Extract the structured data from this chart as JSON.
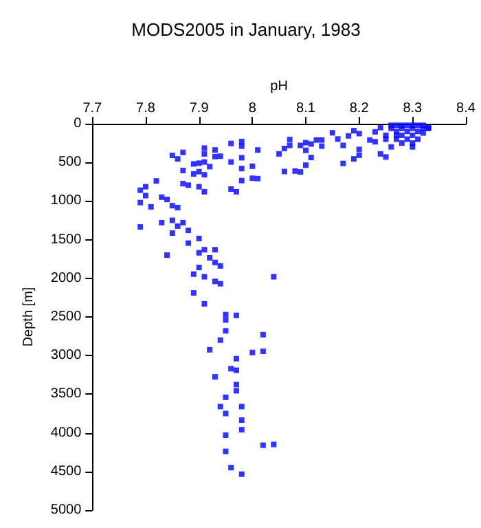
{
  "chart_data": {
    "type": "scatter",
    "title": "MODS2005 in January, 1983",
    "xlabel": "pH",
    "ylabel": "Depth [m]",
    "series": [
      {
        "color": "#0000ff",
        "x": [
          8.26,
          8.27,
          8.28,
          8.29,
          8.3,
          8.31,
          8.32,
          8.33,
          8.27,
          8.28,
          8.29,
          8.3,
          8.3,
          8.3,
          8.31,
          8.32,
          8.33,
          8.27,
          8.28,
          8.26,
          8.25,
          8.25,
          8.24,
          8.29,
          8.31,
          8.26,
          8.28,
          8.3,
          8.32,
          8.27,
          8.15,
          8.19,
          8.2,
          8.23,
          8.17,
          8.19,
          8.17,
          8.2,
          8.24,
          8.25,
          8.23,
          8.22,
          8.13,
          8.12,
          8.11,
          8.1,
          8.09,
          8.07,
          8.07,
          8.06,
          8.1,
          8.11,
          8.1,
          8.09,
          8.08,
          8.06,
          8.13,
          8.16,
          8.18,
          8.2,
          7.91,
          7.93,
          7.96,
          7.98,
          7.98,
          8.01,
          8.05,
          7.85,
          7.86,
          7.87,
          7.91,
          7.93,
          7.94,
          7.98,
          7.96,
          7.89,
          7.9,
          7.91,
          7.92,
          7.9,
          7.89,
          7.91,
          7.87,
          7.98,
          8.0,
          8.0,
          8.01,
          7.98,
          7.87,
          7.88,
          7.9,
          7.91,
          7.96,
          7.97,
          7.82,
          7.8,
          7.79,
          7.8,
          7.79,
          7.81,
          7.83,
          7.84,
          7.85,
          7.86,
          7.79,
          7.83,
          7.85,
          7.86,
          7.87,
          7.88,
          7.85,
          7.88,
          7.9,
          7.9,
          7.91,
          7.93,
          7.92,
          7.93,
          7.94,
          7.84,
          7.9,
          7.89,
          7.91,
          7.93,
          7.94,
          8.04,
          7.89,
          7.91,
          7.95,
          7.97,
          7.95,
          7.95,
          8.02,
          7.94,
          7.92,
          7.97,
          8.0,
          8.02,
          7.96,
          7.97,
          7.93,
          7.97,
          7.97,
          7.95,
          7.94,
          7.98,
          7.95,
          7.98,
          7.98,
          7.95,
          8.02,
          8.04,
          7.95,
          7.96,
          7.98
        ],
        "values": [
          20,
          20,
          20,
          20,
          20,
          20,
          20,
          60,
          100,
          150,
          200,
          150,
          250,
          300,
          200,
          120,
          50,
          200,
          250,
          300,
          200,
          150,
          50,
          100,
          100,
          60,
          60,
          60,
          60,
          150,
          117,
          90,
          128,
          105,
          280,
          455,
          513,
          408,
          390,
          430,
          233,
          210,
          210,
          210,
          262,
          245,
          280,
          204,
          280,
          320,
          344,
          437,
          536,
          624,
          612,
          618,
          290,
          198,
          157,
          332,
          315,
          340,
          255,
          230,
          290,
          340,
          390,
          410,
          455,
          370,
          390,
          425,
          420,
          440,
          495,
          520,
          510,
          495,
          555,
          620,
          650,
          660,
          605,
          580,
          550,
          705,
          710,
          735,
          775,
          795,
          815,
          880,
          845,
          880,
          740,
          815,
          860,
          930,
          1020,
          1075,
          950,
          980,
          1060,
          1085,
          1335,
          1280,
          1250,
          1325,
          1280,
          1380,
          1415,
          1545,
          1485,
          1670,
          1630,
          1630,
          1735,
          1795,
          1840,
          1700,
          1860,
          1946,
          1980,
          2040,
          2070,
          1980,
          2190,
          2330,
          2470,
          2480,
          2540,
          2680,
          2730,
          2800,
          2925,
          3040,
          2960,
          2945,
          3170,
          3190,
          3275,
          3375,
          3455,
          3540,
          3660,
          3660,
          3750,
          3835,
          3960,
          4030,
          4160,
          4150,
          4240,
          4450,
          4535
        ]
      }
    ],
    "xlim": [
      7.7,
      8.4
    ],
    "xticks": [
      7.7,
      7.8,
      7.9,
      8,
      8.1,
      8.2,
      8.3,
      8.4
    ],
    "ylim": [
      5000,
      0
    ],
    "yticks": [
      0,
      500,
      1000,
      1500,
      2000,
      2500,
      3000,
      3500,
      4000,
      4500,
      5000
    ],
    "marker": "square",
    "grid": false
  }
}
